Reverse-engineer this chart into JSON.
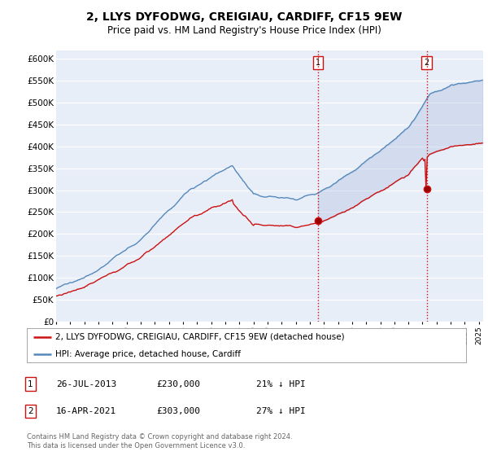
{
  "title": "2, LLYS DYFODWG, CREIGIAU, CARDIFF, CF15 9EW",
  "subtitle": "Price paid vs. HM Land Registry's House Price Index (HPI)",
  "title_fontsize": 10,
  "subtitle_fontsize": 8.5,
  "ylim": [
    0,
    620000
  ],
  "yticks": [
    0,
    50000,
    100000,
    150000,
    200000,
    250000,
    300000,
    350000,
    400000,
    450000,
    500000,
    550000,
    600000
  ],
  "ytick_labels": [
    "£0",
    "£50K",
    "£100K",
    "£150K",
    "£200K",
    "£250K",
    "£300K",
    "£350K",
    "£400K",
    "£450K",
    "£500K",
    "£550K",
    "£600K"
  ],
  "hpi_color": "#5588bb",
  "price_color": "#cc1111",
  "vline_color": "#cc1111",
  "background_color": "#ffffff",
  "plot_bg_color": "#e8eef8",
  "grid_color": "#ffffff",
  "shade_color": "#d0dff0",
  "sale1_year": 2013.57,
  "sale1_price": 230000,
  "sale2_year": 2021.29,
  "sale2_price": 303000,
  "footnote": "Contains HM Land Registry data © Crown copyright and database right 2024.\nThis data is licensed under the Open Government Licence v3.0.",
  "legend_property": "2, LLYS DYFODWG, CREIGIAU, CARDIFF, CF15 9EW (detached house)",
  "legend_hpi": "HPI: Average price, detached house, Cardiff",
  "annotation1_date": "26-JUL-2013",
  "annotation1_price": "£230,000",
  "annotation1_pct": "21% ↓ HPI",
  "annotation2_date": "16-APR-2021",
  "annotation2_price": "£303,000",
  "annotation2_pct": "27% ↓ HPI",
  "xlim_start": 1995,
  "xlim_end": 2025.3
}
